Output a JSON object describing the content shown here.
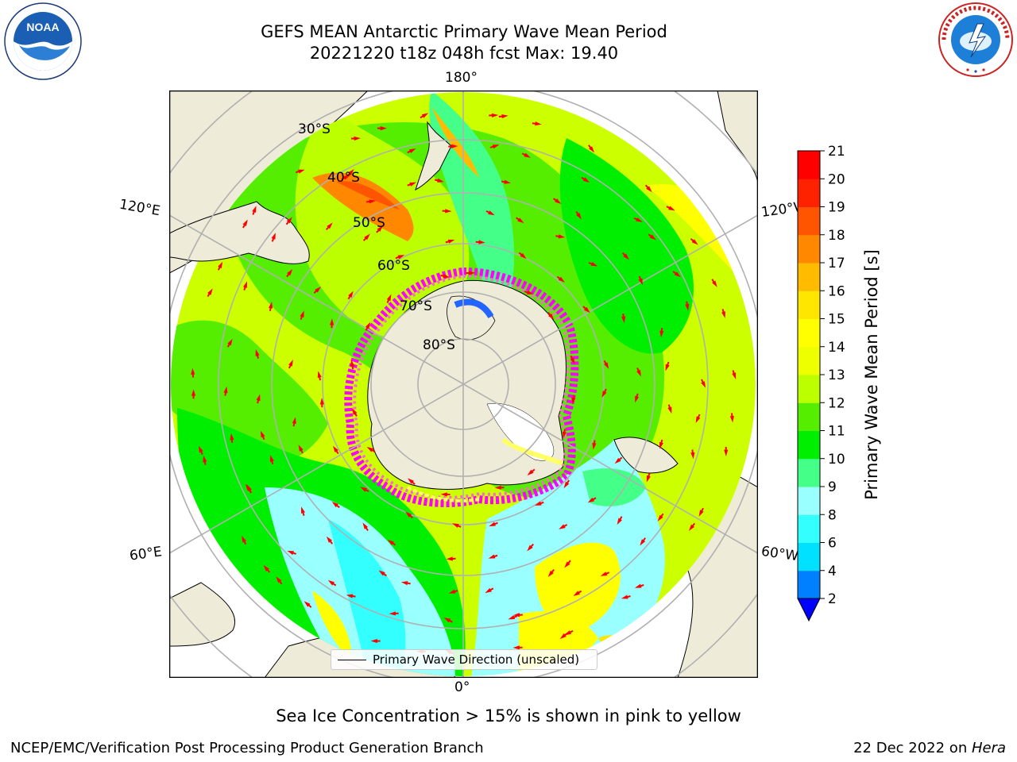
{
  "title": {
    "line1": "GEFS MEAN Antarctic Primary Wave Mean Period",
    "line2": "20221220 t18z 048h fcst   Max: 19.40"
  },
  "logos": {
    "left": "noaa-logo",
    "right": "nws-logo",
    "left_text": "NOAA",
    "left_ring_text": "NATIONAL OCEANIC AND ATMOSPHERIC ADMINISTRATION · U.S. DEPARTMENT OF COMMERCE",
    "right_ring_text": "NATIONAL WEATHER SERVICE"
  },
  "map": {
    "projection": "south polar stereographic",
    "lon_labels": {
      "top": "180°",
      "bottom": "0°",
      "left_upper": "120°E",
      "right_upper": "120°W",
      "left_lower": "60°E",
      "right_lower": "60°W"
    },
    "lat_labels": [
      "30°S",
      "40°S",
      "50°S",
      "60°S",
      "70°S",
      "80°S"
    ],
    "legend_label": "Primary Wave Direction (unscaled)",
    "land_color": "#efebd9",
    "arrow_color": "#ff0000",
    "ice_colors": [
      "#ff00ff",
      "#ff66cc",
      "#ffff66"
    ]
  },
  "colorbar": {
    "label": "Primary Wave Mean Period [s]",
    "ticks": [
      "2",
      "4",
      "6",
      "8",
      "9",
      "10",
      "11",
      "12",
      "13",
      "14",
      "15",
      "16",
      "17",
      "18",
      "19",
      "20",
      "21"
    ],
    "colors": [
      "#0080ff",
      "#00e0ff",
      "#33ffff",
      "#99ffff",
      "#44ff88",
      "#00ee00",
      "#55ee00",
      "#bbff00",
      "#eeff00",
      "#ffff00",
      "#ffe600",
      "#ffbb00",
      "#ff8800",
      "#ff5500",
      "#ff2200",
      "#ff0000"
    ],
    "extend_color": "#0000ff"
  },
  "notes": {
    "ice": "Sea Ice Concentration > 15% is shown in pink to yellow",
    "footer_left": "NCEP/EMC/Verification Post Processing Product Generation Branch",
    "footer_date": "22 Dec 2022 on ",
    "footer_machine": "Hera"
  }
}
